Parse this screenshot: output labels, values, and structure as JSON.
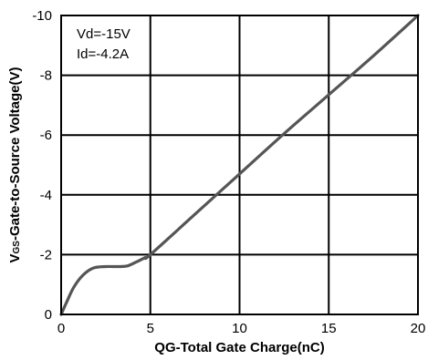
{
  "chart_data": {
    "type": "line",
    "xlabel": "QG-Total Gate Charge(nC)",
    "ylabel": {
      "prefix": "V",
      "subscript": "GS",
      "suffix": "-Gate-to-Source Voltage(V)"
    },
    "xlim": [
      0,
      20
    ],
    "ylim": [
      0,
      -10
    ],
    "x_ticks": [
      "0",
      "5",
      "10",
      "15",
      "20"
    ],
    "y_ticks": [
      "0",
      "-2",
      "-4",
      "-6",
      "-8",
      "-10"
    ],
    "grid": true,
    "annotations": [
      "Vd=-15V",
      "Id=-4.2A"
    ],
    "series": [
      {
        "color": "#555555",
        "x": [
          0,
          0.3,
          0.7,
          1.2,
          1.8,
          2.5,
          3.2,
          3.7,
          4.2,
          4.7,
          5.0,
          7.5,
          10,
          12.5,
          15,
          17.5,
          20
        ],
        "y": [
          0,
          -0.4,
          -0.9,
          -1.3,
          -1.55,
          -1.6,
          -1.6,
          -1.62,
          -1.75,
          -1.9,
          -2.0,
          -3.35,
          -4.7,
          -6.05,
          -7.35,
          -8.65,
          -10
        ]
      }
    ]
  }
}
